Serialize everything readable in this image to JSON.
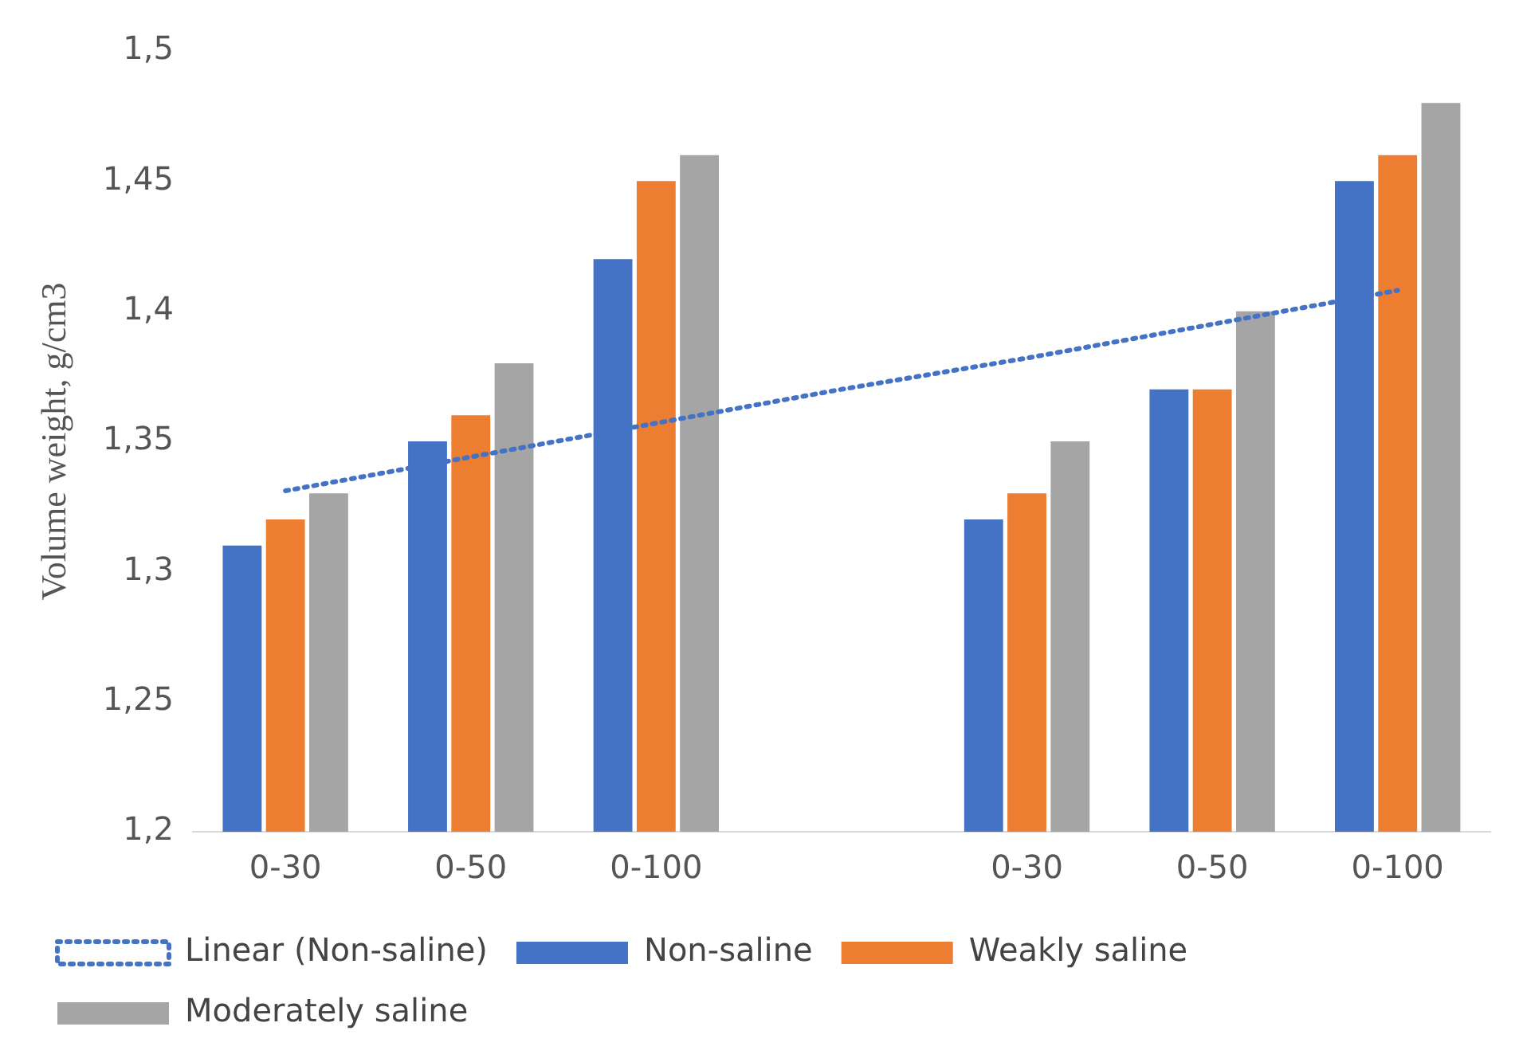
{
  "chart_data": {
    "type": "bar",
    "ylabel": "Volume weight, g/cm3",
    "categories": [
      "0-30",
      "0-50",
      "0-100",
      null,
      "0-30",
      "0-50",
      "0-100"
    ],
    "series": [
      {
        "name": "Non-saline",
        "color": "#4472c4",
        "values": [
          1.31,
          1.35,
          1.42,
          null,
          1.32,
          1.37,
          1.45
        ]
      },
      {
        "name": "Weakly saline",
        "color": "#ed7d31",
        "values": [
          1.32,
          1.36,
          1.45,
          null,
          1.33,
          1.37,
          1.46
        ]
      },
      {
        "name": "Moderately saline",
        "color": "#a5a5a5",
        "values": [
          1.33,
          1.38,
          1.46,
          null,
          1.35,
          1.4,
          1.48
        ]
      },
      {
        "name": "Linear (Non-saline)",
        "type": "line",
        "color": "#4472c4",
        "line_style": "dotted",
        "marker": "none",
        "values": [
          1.331,
          1.344,
          1.357,
          1.37,
          1.382,
          1.395,
          1.408
        ]
      }
    ],
    "ylim": [
      1.2,
      1.5
    ],
    "yticks": [
      {
        "value": 1.2,
        "label": "1,2"
      },
      {
        "value": 1.25,
        "label": "1,25"
      },
      {
        "value": 1.3,
        "label": "1,3"
      },
      {
        "value": 1.35,
        "label": "1,35"
      },
      {
        "value": 1.4,
        "label": "1,4"
      },
      {
        "value": 1.45,
        "label": "1,45"
      },
      {
        "value": 1.5,
        "label": "1,5"
      }
    ],
    "grid": false,
    "legend": "bottom"
  }
}
